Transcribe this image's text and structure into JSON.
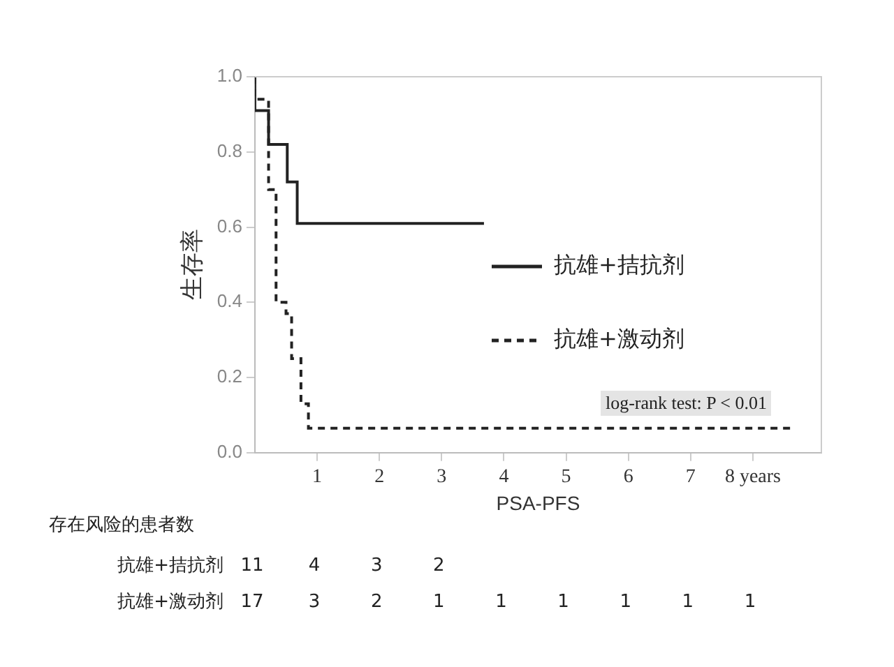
{
  "chart_data": {
    "type": "step",
    "xlabel": "PSA-PFS",
    "ylabel": "生存率",
    "xlim": [
      0,
      9.1
    ],
    "xticks": [
      1,
      2,
      3,
      4,
      5,
      6,
      7,
      {
        "value": 8,
        "label": "8 years"
      }
    ],
    "ylim": [
      0,
      1
    ],
    "yticks": [
      {
        "value": 0,
        "label": "0.0"
      },
      {
        "value": 0.2,
        "label": "0.2"
      },
      {
        "value": 0.4,
        "label": "0.4"
      },
      {
        "value": 0.6,
        "label": "0.6"
      },
      {
        "value": 0.8,
        "label": "0.8"
      },
      {
        "value": 1,
        "label": "1.0"
      }
    ],
    "grid": false,
    "legend": "right",
    "marker": "none",
    "series": [
      {
        "name": "抗雄+拮抗剂",
        "color": "#222222",
        "line_style": "solid",
        "x": [
          0,
          0.22,
          0.52,
          0.68,
          0.85,
          3.68
        ],
        "values": [
          1,
          0.91,
          0.82,
          0.72,
          0.61,
          0.61
        ]
      },
      {
        "name": "抗雄+激动剂",
        "color": "#222222",
        "line_style": "dashed",
        "x": [
          0,
          0.22,
          0.34,
          0.5,
          0.59,
          0.74,
          0.86,
          0.97,
          8.67
        ],
        "values": [
          1,
          0.94,
          0.7,
          0.4,
          0.37,
          0.25,
          0.13,
          0.065,
          0.065
        ]
      }
    ],
    "annotations": [
      "log-rank test: P < 0.01",
      "存在风险的患者数",
      "抗雄+拮抗剂",
      "11",
      "4",
      "3",
      "2",
      "抗雄+激动剂",
      "17",
      "3",
      "2",
      "1",
      "1",
      "1",
      "1",
      "1",
      "1"
    ]
  }
}
